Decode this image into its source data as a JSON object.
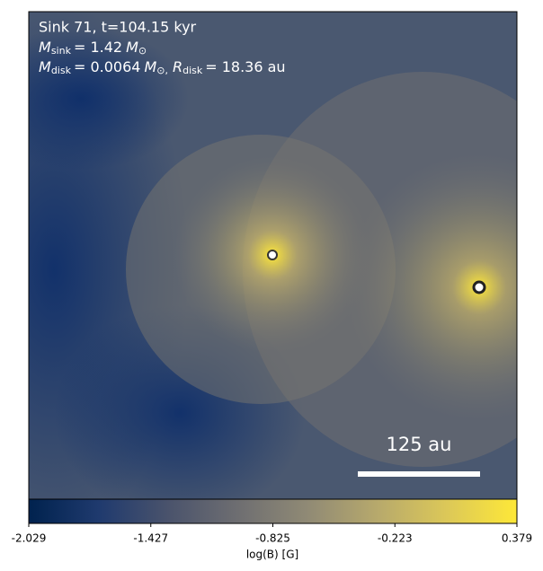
{
  "chart_data": {
    "type": "image-map",
    "header_line": "Sink 71, t=104.15 kyr",
    "sink_mass": {
      "symbol": "M",
      "sub": "sink",
      "value": "= 1.42",
      "unit": "M",
      "unit_sub": "⊙"
    },
    "disk": {
      "symbol": "M",
      "sub": "disk",
      "value": "= 0.0064",
      "unit": "M",
      "unit_sub": "⊙,",
      "r_symbol": "R",
      "r_sub": "disk",
      "r_value": "= 18.36 au"
    },
    "scale_bar_label": "125 au",
    "colorbar_label": "log(B) [G]",
    "clim": [
      -2.029,
      0.379
    ],
    "cticks": [
      -2.029,
      -1.427,
      -0.825,
      -0.223,
      0.379
    ],
    "colormap": [
      "#00224e",
      "#1f3a6e",
      "#4a536c",
      "#6e6e71",
      "#908a75",
      "#b7a96c",
      "#dcc858",
      "#fee838"
    ]
  }
}
